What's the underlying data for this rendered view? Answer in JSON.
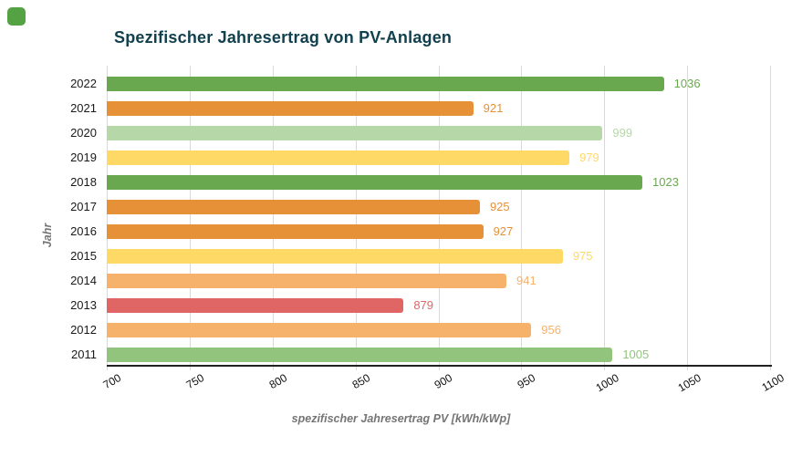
{
  "app_icon": {
    "color": "#55a245"
  },
  "colors": {
    "background": "#ffffff",
    "title": "#11404e",
    "axis_title": "#757575",
    "year_label": "#1a1a1a",
    "tick_label": "#111111",
    "gridline": "#d9d9d9",
    "baseline": "#212121"
  },
  "chart_data": {
    "type": "bar",
    "orientation": "horizontal",
    "title": "Spezifischer Jahresertrag von PV-Anlagen",
    "xlabel": "spezifischer Jahresertrag PV [kWh/kWp]",
    "ylabel": "Jahr",
    "xlim": [
      700,
      1100
    ],
    "xticks": [
      700,
      750,
      800,
      850,
      900,
      950,
      1000,
      1050,
      1100
    ],
    "grid": true,
    "data_labels": true,
    "categories": [
      "2022",
      "2021",
      "2020",
      "2019",
      "2018",
      "2017",
      "2016",
      "2015",
      "2014",
      "2013",
      "2012",
      "2011"
    ],
    "values": [
      1036,
      921,
      999,
      979,
      1023,
      925,
      927,
      975,
      941,
      879,
      956,
      1005
    ],
    "bar_colors": [
      "#6aa84f",
      "#e69138",
      "#b6d7a8",
      "#ffd966",
      "#6aa84f",
      "#e69138",
      "#e69138",
      "#ffd966",
      "#f6b26b",
      "#e06666",
      "#f6b26b",
      "#93c47d"
    ]
  }
}
